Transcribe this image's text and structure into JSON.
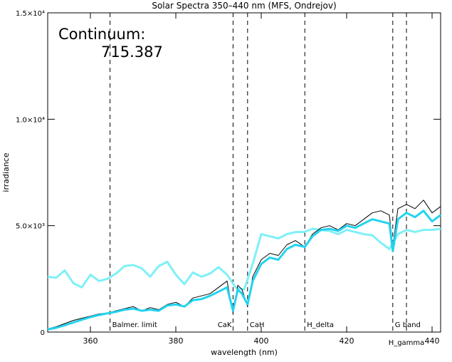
{
  "chart_data": {
    "type": "line",
    "title": "Solar Spectra 350–440 nm (MFS, Ondrejov)",
    "xlabel": "wavelength (nm)",
    "ylabel": "irradiance",
    "xlim": [
      350,
      442
    ],
    "ylim": [
      0,
      15000
    ],
    "x_ticks": [
      {
        "value": 360,
        "label": "360"
      },
      {
        "value": 380,
        "label": "380"
      },
      {
        "value": 400,
        "label": "400"
      },
      {
        "value": 420,
        "label": "420"
      },
      {
        "value": 440,
        "label": "440"
      }
    ],
    "y_ticks": [
      {
        "value": 0,
        "label": "0"
      },
      {
        "value": 5000,
        "label": "5.0×10³"
      },
      {
        "value": 10000,
        "label": "1.0×10⁴"
      },
      {
        "value": 15000,
        "label": "1.5×10⁴"
      }
    ],
    "annotation": {
      "label": "Continuum:",
      "value": "715.387"
    },
    "markers": [
      {
        "x": 364.6,
        "label": "Balmer. limit"
      },
      {
        "x": 393.4,
        "label": "CaK"
      },
      {
        "x": 396.8,
        "label": "CaH"
      },
      {
        "x": 410.2,
        "label": "H_delta"
      },
      {
        "x": 430.8,
        "label": "G band"
      },
      {
        "x": 434.0,
        "label": "H_gamma"
      }
    ],
    "series": [
      {
        "color": "#000000",
        "x": [
          350,
          352,
          354,
          356,
          358,
          360,
          362,
          364,
          366,
          368,
          370,
          372,
          374,
          376,
          378,
          380,
          382,
          384,
          386,
          388,
          390,
          392,
          393.4,
          394.5,
          395.5,
          396.8,
          398,
          400,
          402,
          404,
          406,
          408,
          410.2,
          412,
          414,
          416,
          418,
          420,
          422,
          424,
          426,
          428,
          430,
          430.8,
          432,
          434,
          436,
          438,
          440,
          442
        ],
        "y": [
          150,
          250,
          400,
          550,
          650,
          750,
          850,
          900,
          1000,
          1100,
          1200,
          1000,
          1150,
          1050,
          1300,
          1400,
          1200,
          1600,
          1700,
          1800,
          2100,
          2400,
          900,
          2200,
          2000,
          1200,
          2600,
          3400,
          3700,
          3600,
          4100,
          4300,
          4000,
          4600,
          4900,
          5000,
          4800,
          5100,
          5000,
          5300,
          5600,
          5700,
          5500,
          4000,
          5800,
          6000,
          5800,
          6200,
          5600,
          5900
        ]
      },
      {
        "color": "#22d3ee",
        "x": [
          350,
          352,
          354,
          356,
          358,
          360,
          362,
          364,
          366,
          368,
          370,
          372,
          374,
          376,
          378,
          380,
          382,
          384,
          386,
          388,
          390,
          392,
          393.4,
          394.5,
          395.5,
          396.8,
          398,
          400,
          402,
          404,
          406,
          408,
          410.2,
          412,
          414,
          416,
          418,
          420,
          422,
          424,
          426,
          428,
          430,
          430.8,
          432,
          434,
          436,
          438,
          440,
          442
        ],
        "y": [
          120,
          200,
          320,
          450,
          580,
          700,
          800,
          880,
          950,
          1050,
          1100,
          1000,
          1050,
          1000,
          1250,
          1300,
          1200,
          1500,
          1550,
          1700,
          1900,
          2100,
          1000,
          2000,
          1800,
          1300,
          2400,
          3200,
          3500,
          3400,
          3900,
          4100,
          4000,
          4500,
          4800,
          4850,
          4750,
          5000,
          4900,
          5100,
          5300,
          5200,
          5100,
          3800,
          5300,
          5600,
          5400,
          5700,
          5200,
          5500
        ]
      },
      {
        "color": "#7ef0f7",
        "x": [
          350,
          352,
          354,
          356,
          358,
          360,
          362,
          364,
          366,
          368,
          370,
          372,
          374,
          376,
          378,
          380,
          382,
          384,
          386,
          388,
          390,
          392,
          394,
          396,
          398,
          400,
          402,
          404,
          406,
          408,
          410,
          412,
          414,
          416,
          418,
          420,
          422,
          424,
          426,
          428,
          430,
          432,
          434,
          436,
          438,
          440,
          442
        ],
        "y": [
          2600,
          2550,
          2900,
          2300,
          2100,
          2700,
          2400,
          2500,
          2750,
          3100,
          3150,
          3000,
          2600,
          3100,
          3300,
          2700,
          2250,
          2800,
          2600,
          2750,
          3050,
          2700,
          2100,
          2000,
          3200,
          4600,
          4500,
          4400,
          4600,
          4700,
          4700,
          4850,
          4800,
          4750,
          4600,
          4800,
          4700,
          4600,
          4550,
          4200,
          3900,
          4600,
          4800,
          4700,
          4800,
          4800,
          4850
        ]
      }
    ]
  }
}
